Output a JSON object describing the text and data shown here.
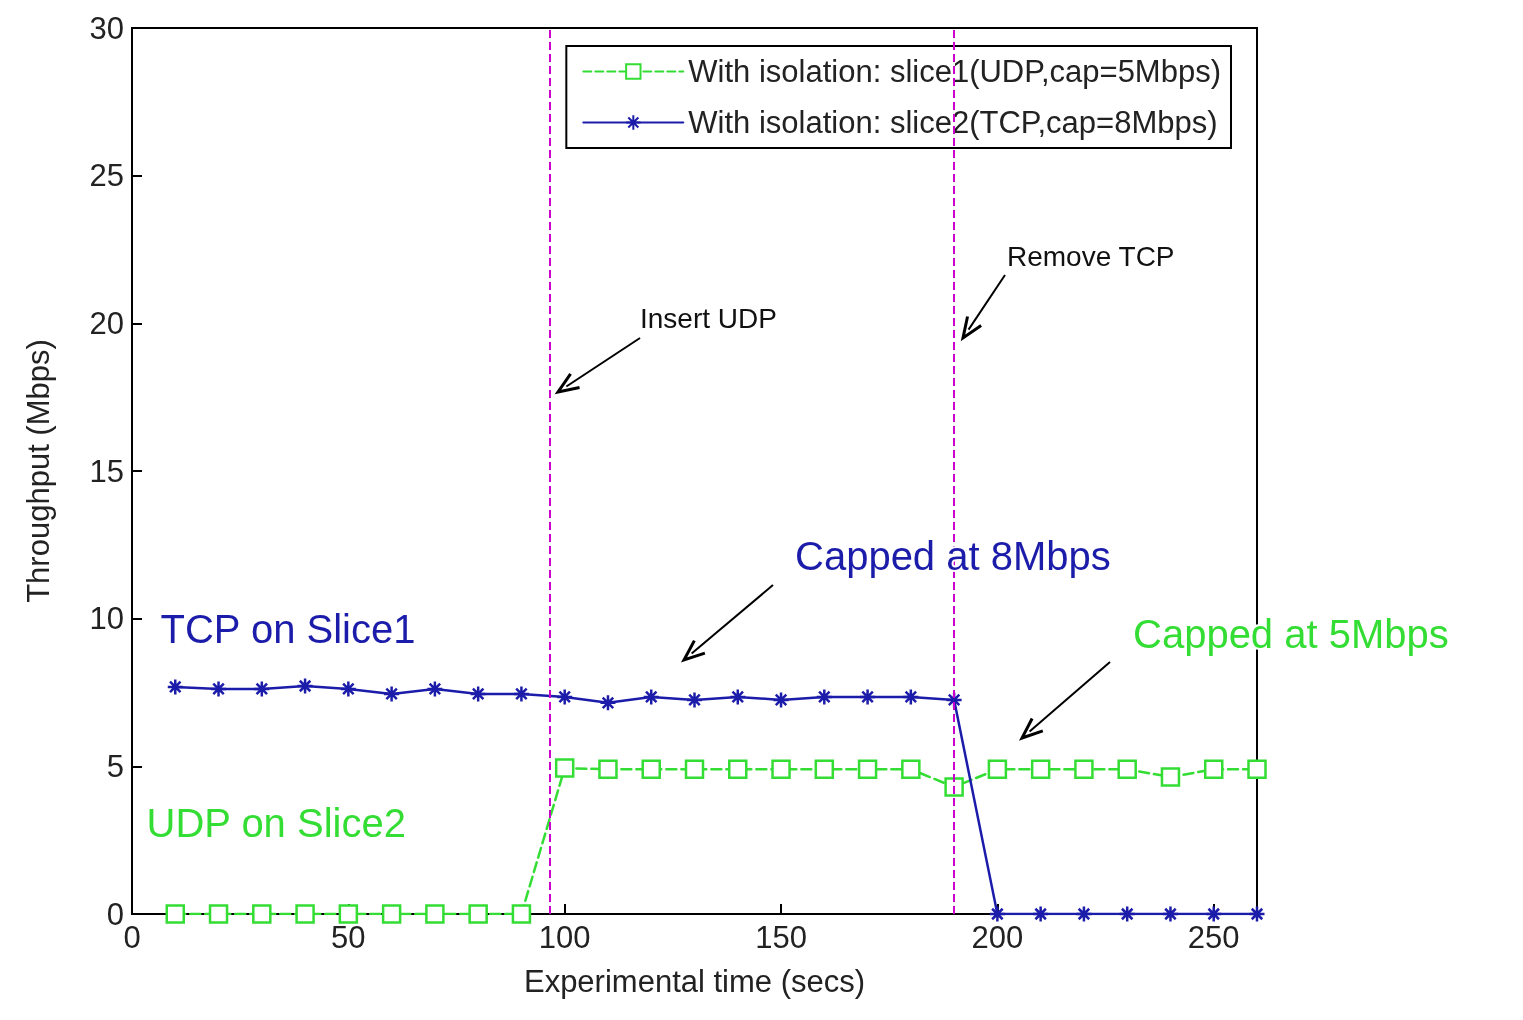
{
  "chart_data": {
    "type": "line",
    "xlabel": "Experimental time (secs)",
    "ylabel": "Throughput (Mbps)",
    "xlim": [
      0,
      260
    ],
    "xticks": [
      0,
      50,
      100,
      150,
      200,
      250
    ],
    "ylim": [
      0,
      30
    ],
    "yticks": [
      0,
      5,
      10,
      15,
      20,
      25,
      30
    ],
    "x": [
      10,
      20,
      30,
      40,
      50,
      60,
      70,
      80,
      90,
      100,
      110,
      120,
      130,
      140,
      150,
      160,
      170,
      180,
      190,
      200,
      210,
      220,
      230,
      240,
      250,
      260
    ],
    "series": [
      {
        "name": "With isolation: slice1(UDP,cap=5Mbps)",
        "color": "#33dd33",
        "marker": "square",
        "line_style": "dashed",
        "values": [
          0,
          0,
          0,
          0,
          0,
          0,
          0,
          0,
          0,
          4.94,
          4.9,
          4.9,
          4.9,
          4.9,
          4.9,
          4.9,
          4.9,
          4.9,
          4.3,
          4.9,
          4.9,
          4.9,
          4.9,
          4.64,
          4.9,
          4.9
        ]
      },
      {
        "name": "With isolation: slice2(TCP,cap=8Mbps)",
        "color": "#1c1caa",
        "marker": "cross",
        "line_style": "solid",
        "values": [
          7.69,
          7.62,
          7.62,
          7.72,
          7.62,
          7.45,
          7.62,
          7.45,
          7.45,
          7.35,
          7.15,
          7.35,
          7.25,
          7.35,
          7.25,
          7.35,
          7.35,
          7.35,
          7.25,
          0,
          0,
          0,
          0,
          0,
          0,
          0
        ]
      }
    ],
    "ref_lines": [
      {
        "axis": "x",
        "value": 96.5,
        "color": "#cc00cc",
        "line_style": "dashed"
      },
      {
        "axis": "x",
        "value": 190,
        "color": "#cc00cc",
        "line_style": "dashed"
      }
    ],
    "annotations": [
      "Insert UDP",
      "Remove TCP",
      "Capped at 8Mbps",
      "Capped at 5Mbps",
      {
        "text": "TCP on Slice1",
        "x": 20,
        "y": 7.62
      },
      {
        "text": "UDP on Slice2",
        "x": 20,
        "y": 0
      }
    ],
    "grid": false,
    "legend": "top right"
  }
}
